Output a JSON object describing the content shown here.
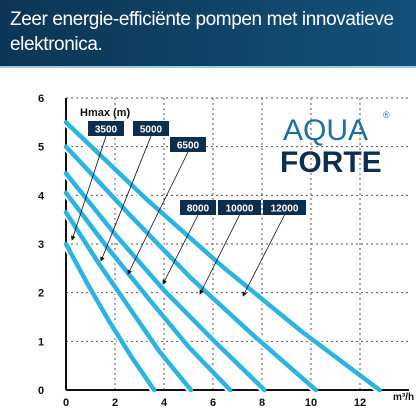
{
  "chart_data": {
    "type": "line",
    "title": "Zeer energie-efficiënte pompen met innovatieve elektronica.",
    "ylabel": "Hmax (m)",
    "xlabel": "m³/h",
    "logo_top": "AQUA",
    "logo_mark": "®",
    "logo_bottom": "FORTE",
    "xlim": [
      0,
      14
    ],
    "xticks": [
      0,
      2,
      4,
      6,
      8,
      10,
      12
    ],
    "ylim": [
      0,
      6
    ],
    "yticks": [
      0,
      1,
      2,
      3,
      4,
      5,
      6
    ],
    "grid": true,
    "color": "#2bb3e3",
    "series": [
      {
        "name": "3500",
        "x": [
          0,
          0.9,
          1.8,
          2.7,
          3.6
        ],
        "values": [
          3.0,
          2.16,
          1.38,
          0.66,
          0
        ]
      },
      {
        "name": "5000",
        "x": [
          0,
          1.3,
          2.6,
          3.8,
          5.1
        ],
        "values": [
          3.65,
          2.63,
          1.68,
          0.8,
          0
        ]
      },
      {
        "name": "6500",
        "x": [
          0,
          1.7,
          3.4,
          5.0,
          6.7
        ],
        "values": [
          4.05,
          2.92,
          1.86,
          0.89,
          0
        ]
      },
      {
        "name": "8000",
        "x": [
          0,
          2,
          4,
          6.1,
          8.1
        ],
        "values": [
          4.45,
          3.2,
          2.05,
          0.98,
          0
        ]
      },
      {
        "name": "10000",
        "x": [
          0,
          2.6,
          5.1,
          7.7,
          10.2
        ],
        "values": [
          5.0,
          3.6,
          2.3,
          1.1,
          0
        ]
      },
      {
        "name": "12000",
        "x": [
          0,
          3.2,
          6.4,
          9.6,
          12.8
        ],
        "values": [
          5.5,
          3.96,
          2.53,
          1.21,
          0
        ]
      }
    ]
  }
}
